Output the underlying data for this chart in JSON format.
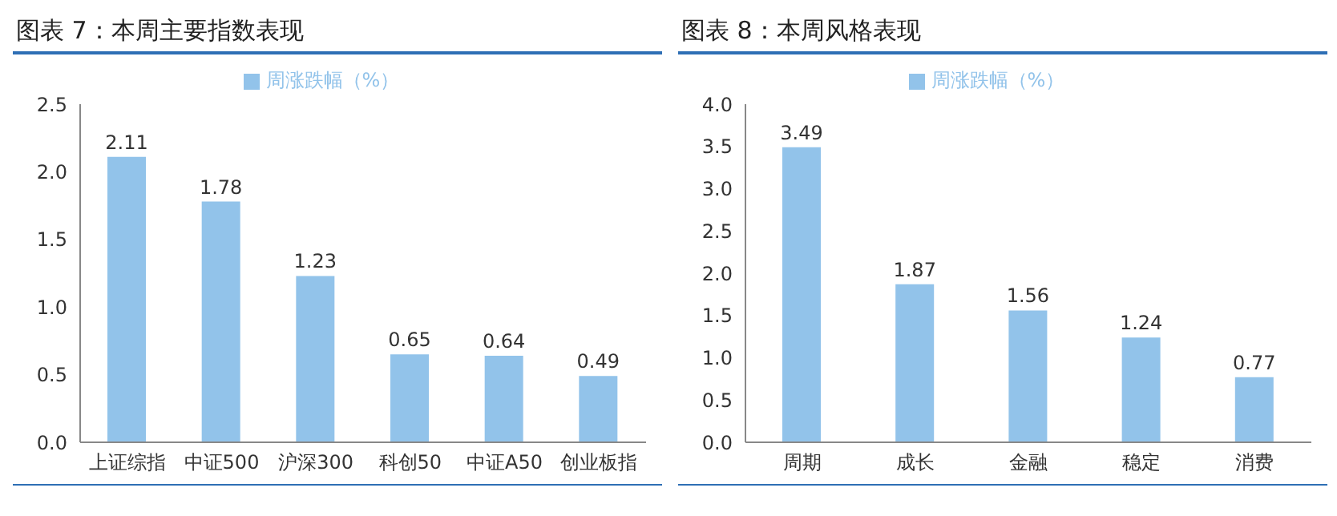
{
  "chart_data": [
    {
      "type": "bar",
      "title": "图表 7：本周主要指数表现",
      "categories": [
        "上证综指",
        "中证500",
        "沪深300",
        "科创50",
        "中证A50",
        "创业板指"
      ],
      "series": [
        {
          "name": "周涨跌幅（%）",
          "color": "#92c3ea",
          "values": [
            2.11,
            1.78,
            1.23,
            0.65,
            0.64,
            0.49
          ]
        }
      ],
      "ylim": [
        0,
        2.5
      ],
      "yticks": [
        {
          "value": 0,
          "label": "0.0"
        },
        {
          "value": 0.5,
          "label": "0.5"
        },
        {
          "value": 1,
          "label": "1.0"
        },
        {
          "value": 1.5,
          "label": "1.5"
        },
        {
          "value": 2,
          "label": "2.0"
        },
        {
          "value": 2.5,
          "label": "2.5"
        }
      ],
      "legend": "top",
      "data_labels": true
    },
    {
      "type": "bar",
      "title": "图表 8：本周风格表现",
      "categories": [
        "周期",
        "成长",
        "金融",
        "稳定",
        "消费"
      ],
      "series": [
        {
          "name": "周涨跌幅（%）",
          "color": "#92c3ea",
          "values": [
            3.49,
            1.87,
            1.56,
            1.24,
            0.77
          ]
        }
      ],
      "ylim": [
        0,
        4
      ],
      "yticks": [
        {
          "value": 0,
          "label": "0.0"
        },
        {
          "value": 0.5,
          "label": "0.5"
        },
        {
          "value": 1,
          "label": "1.0"
        },
        {
          "value": 1.5,
          "label": "1.5"
        },
        {
          "value": 2,
          "label": "2.0"
        },
        {
          "value": 2.5,
          "label": "2.5"
        },
        {
          "value": 3,
          "label": "3.0"
        },
        {
          "value": 3.5,
          "label": "3.5"
        },
        {
          "value": 4,
          "label": "4.0"
        }
      ],
      "legend": "top",
      "data_labels": true
    }
  ]
}
